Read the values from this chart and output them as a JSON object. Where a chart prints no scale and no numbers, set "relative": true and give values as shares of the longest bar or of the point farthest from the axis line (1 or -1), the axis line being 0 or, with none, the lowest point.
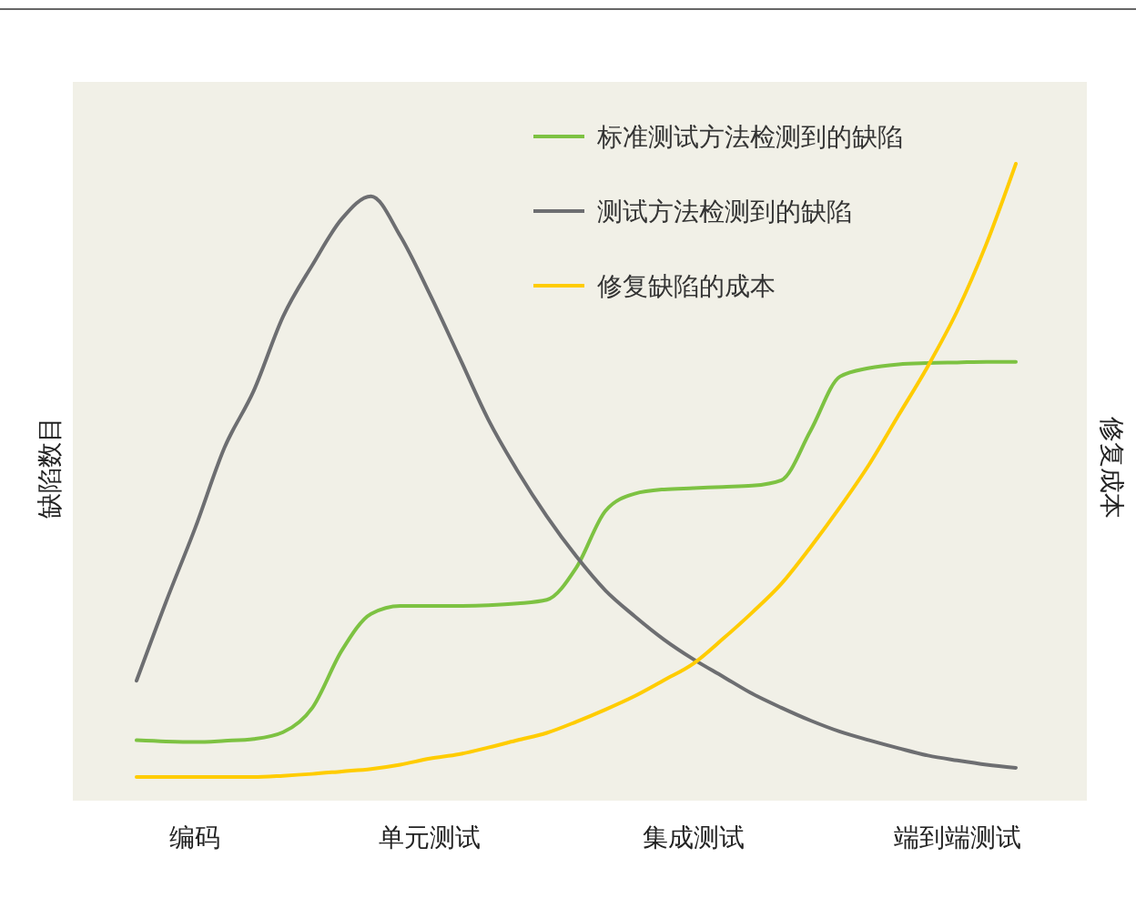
{
  "chart_data": {
    "type": "line",
    "ylabel": "缺陷数目",
    "y2label": "修复成本",
    "relative": true,
    "legend": "top right",
    "categories": [
      null,
      null,
      "编码",
      null,
      null,
      null,
      null,
      null,
      null,
      null,
      "单元测试",
      null,
      null,
      null,
      null,
      null,
      null,
      null,
      null,
      "集成测试",
      null,
      null,
      null,
      null,
      null,
      null,
      null,
      null,
      "端到端测试",
      null,
      null
    ],
    "series": [
      {
        "name": "标准测试方法检测到的缺陷",
        "color": "#7dc242",
        "values": [
          0.06,
          0.058,
          0.057,
          0.059,
          0.062,
          0.073,
          0.113,
          0.206,
          0.266,
          0.279,
          0.279,
          0.279,
          0.28,
          0.283,
          0.289,
          0.341,
          0.434,
          0.462,
          0.469,
          0.471,
          0.473,
          0.475,
          0.484,
          0.565,
          0.653,
          0.667,
          0.673,
          0.675,
          0.676,
          0.677,
          0.677
        ]
      },
      {
        "name": "测试方法检测到的缺陷",
        "color": "#6d6e71",
        "values": [
          0.157,
          0.285,
          0.406,
          0.537,
          0.63,
          0.751,
          0.835,
          0.91,
          0.947,
          0.882,
          0.788,
          0.686,
          0.583,
          0.499,
          0.425,
          0.36,
          0.304,
          0.262,
          0.224,
          0.192,
          0.164,
          0.136,
          0.113,
          0.092,
          0.074,
          0.06,
          0.047,
          0.035,
          0.027,
          0.02,
          0.015
        ]
      },
      {
        "name": "修复缺陷的成本",
        "color": "#ffcc00",
        "values": [
          0,
          0,
          0,
          0,
          0,
          0.002,
          0.005,
          0.009,
          0.013,
          0.02,
          0.03,
          0.037,
          0.048,
          0.06,
          0.072,
          0.09,
          0.11,
          0.132,
          0.158,
          0.185,
          0.225,
          0.268,
          0.315,
          0.375,
          0.44,
          0.51,
          0.59,
          0.67,
          0.76,
          0.87,
          1
        ]
      }
    ]
  }
}
